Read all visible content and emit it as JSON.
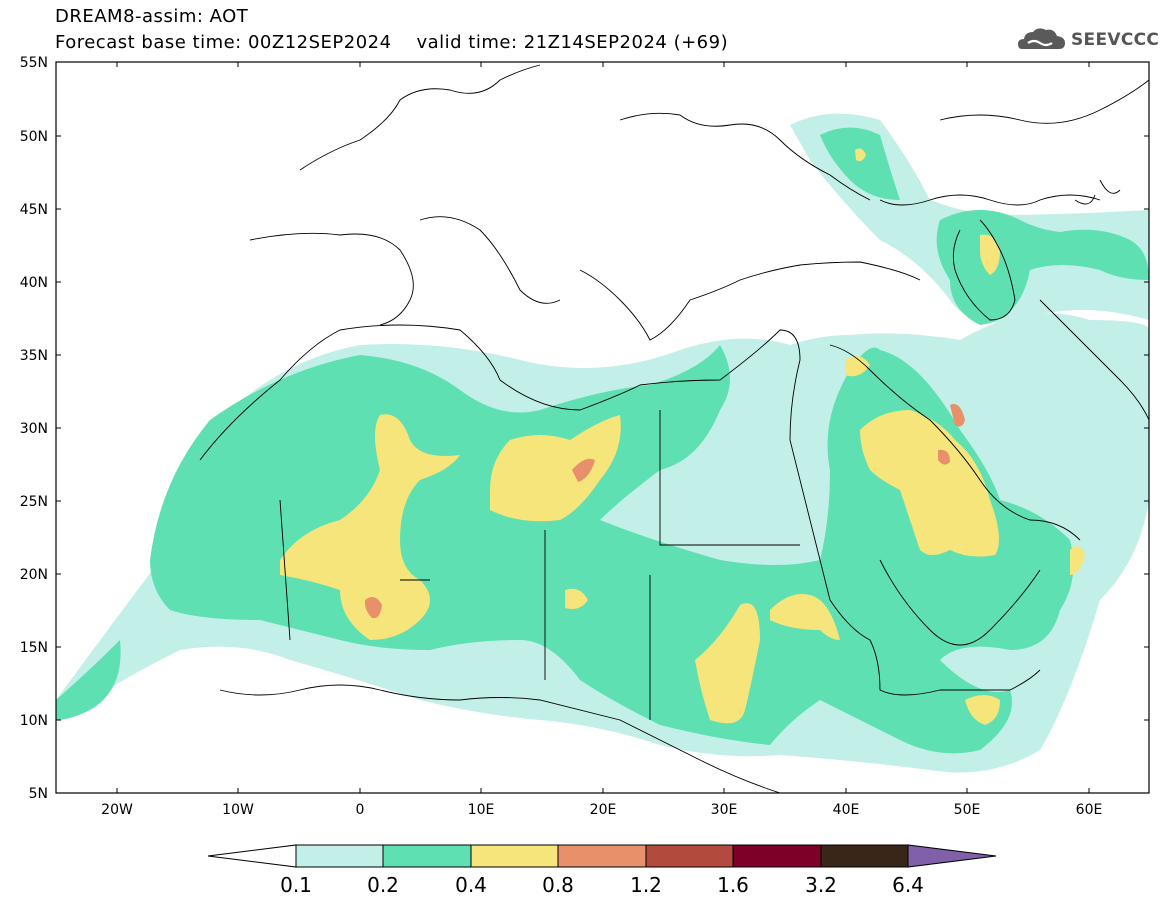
{
  "header": {
    "title_line1": "DREAM8-assim: AOT",
    "title_line2": "Forecast base time: 00Z12SEP2024    valid time: 21Z14SEP2024 (+69)"
  },
  "logo": {
    "text": "SEEVCCC",
    "icon": "cloud-icon",
    "color": "#5a5a5a"
  },
  "map": {
    "lon_range": [
      -25,
      65
    ],
    "lat_range": [
      5,
      55
    ],
    "lat_labels": [
      "55N",
      "50N",
      "45N",
      "40N",
      "35N",
      "30N",
      "25N",
      "20N",
      "15N",
      "10N",
      "5N"
    ],
    "lon_labels": [
      "20W",
      "10W",
      "0",
      "10E",
      "20E",
      "30E",
      "40E",
      "50E",
      "60E"
    ]
  },
  "colorbar": {
    "colors": [
      "#ffffff",
      "#c2efe8",
      "#5ee0b2",
      "#f5e57a",
      "#e8906a",
      "#b24a3e",
      "#7c0028",
      "#3a2618",
      "#8060a8"
    ],
    "labels": [
      "0.1",
      "0.2",
      "0.4",
      "0.8",
      "1.2",
      "1.6",
      "3.2",
      "6.4"
    ]
  },
  "palette": {
    "light": "#c2efe8",
    "mid": "#5ee0b2",
    "high": "#f5e57a",
    "vhigh": "#e8906a",
    "extreme": "#d9685a"
  }
}
